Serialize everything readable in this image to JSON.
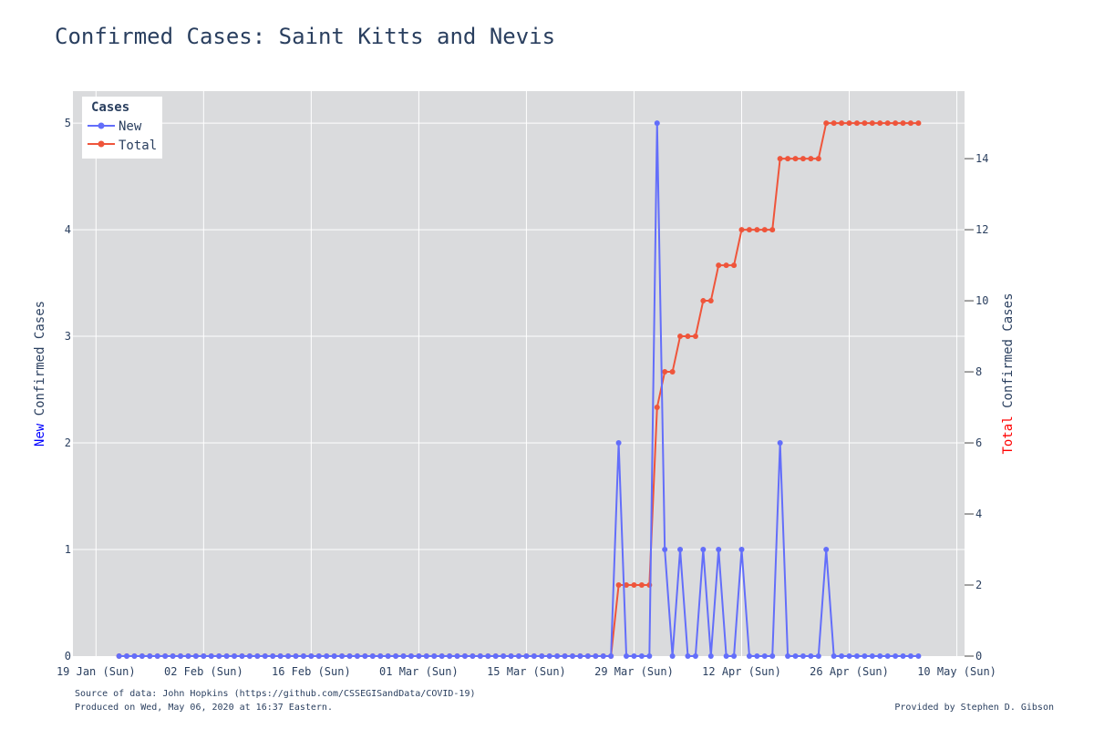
{
  "chart_data": {
    "type": "line",
    "title": "Confirmed Cases: Saint Kitts and Nevis",
    "x_start": "2020-01-22",
    "x_end": "2020-05-05",
    "xlim": [
      "2020-01-16",
      "2020-05-11"
    ],
    "x_ticks": [
      "19 Jan (Sun)",
      "02 Feb (Sun)",
      "16 Feb (Sun)",
      "01 Mar (Sun)",
      "15 Mar (Sun)",
      "29 Mar (Sun)",
      "12 Apr (Sun)",
      "26 Apr (Sun)",
      "10 May (Sun)"
    ],
    "x_tick_dates": [
      "2020-01-19",
      "2020-02-02",
      "2020-02-16",
      "2020-03-01",
      "2020-03-15",
      "2020-03-29",
      "2020-04-12",
      "2020-04-26",
      "2020-05-10"
    ],
    "y_left": {
      "label_colored": "New",
      "label_rest": " Confirmed Cases",
      "label_color": "#0000ff",
      "ylim": [
        0,
        5.3
      ],
      "ticks": [
        0,
        1,
        2,
        3,
        4,
        5
      ]
    },
    "y_right": {
      "label_colored": "Total",
      "label_rest": " Confirmed Cases",
      "label_color": "#ff0000",
      "ylim": [
        0,
        15.9
      ],
      "ticks": [
        0,
        2,
        4,
        6,
        8,
        10,
        12,
        14
      ]
    },
    "legend": {
      "title": "Cases",
      "position": "top-left"
    },
    "grid": true,
    "series": [
      {
        "name": "New",
        "axis": "left",
        "color": "#636efa",
        "values": [
          0,
          0,
          0,
          0,
          0,
          0,
          0,
          0,
          0,
          0,
          0,
          0,
          0,
          0,
          0,
          0,
          0,
          0,
          0,
          0,
          0,
          0,
          0,
          0,
          0,
          0,
          0,
          0,
          0,
          0,
          0,
          0,
          0,
          0,
          0,
          0,
          0,
          0,
          0,
          0,
          0,
          0,
          0,
          0,
          0,
          0,
          0,
          0,
          0,
          0,
          0,
          0,
          0,
          0,
          0,
          0,
          0,
          0,
          0,
          0,
          0,
          0,
          0,
          0,
          0,
          2,
          0,
          0,
          0,
          0,
          5,
          1,
          0,
          1,
          0,
          0,
          1,
          0,
          1,
          0,
          0,
          1,
          0,
          0,
          0,
          0,
          2,
          0,
          0,
          0,
          0,
          0,
          1,
          0,
          0,
          0,
          0,
          0,
          0,
          0,
          0,
          0,
          0,
          0,
          0
        ]
      },
      {
        "name": "Total",
        "axis": "right",
        "color": "#ef553b",
        "values": [
          0,
          0,
          0,
          0,
          0,
          0,
          0,
          0,
          0,
          0,
          0,
          0,
          0,
          0,
          0,
          0,
          0,
          0,
          0,
          0,
          0,
          0,
          0,
          0,
          0,
          0,
          0,
          0,
          0,
          0,
          0,
          0,
          0,
          0,
          0,
          0,
          0,
          0,
          0,
          0,
          0,
          0,
          0,
          0,
          0,
          0,
          0,
          0,
          0,
          0,
          0,
          0,
          0,
          0,
          0,
          0,
          0,
          0,
          0,
          0,
          0,
          0,
          0,
          0,
          0,
          2,
          2,
          2,
          2,
          2,
          7,
          8,
          8,
          9,
          9,
          9,
          10,
          10,
          11,
          11,
          11,
          12,
          12,
          12,
          12,
          12,
          14,
          14,
          14,
          14,
          14,
          14,
          15,
          15,
          15,
          15,
          15,
          15,
          15,
          15,
          15,
          15,
          15,
          15,
          15
        ]
      }
    ]
  },
  "footer": {
    "source": "Source of data: John Hopkins (https://github.com/CSSEGISandData/COVID-19)",
    "produced": "Produced on Wed, May 06, 2020 at 16:37 Eastern.",
    "provided": "Provided by Stephen D. Gibson"
  }
}
